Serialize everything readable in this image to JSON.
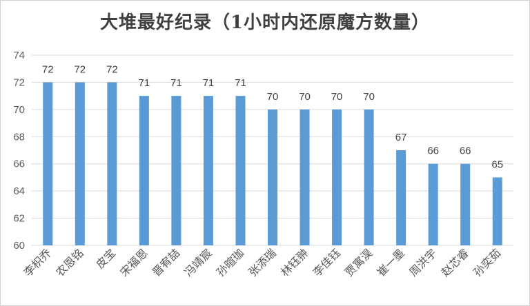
{
  "chart_data": {
    "type": "bar",
    "title": "大堆最好纪录（1小时内还原魔方数量）",
    "categories": [
      "李枳乔",
      "农恩铭",
      "皮宝",
      "宋福恩",
      "晋宥喆",
      "冯靖宸",
      "孙暄珈",
      "张添瑞",
      "林钰翀",
      "李佳钰",
      "贾寓淏",
      "崔一墨",
      "周洪宇",
      "赵芯睿",
      "孙奕茹"
    ],
    "values": [
      72,
      72,
      72,
      71,
      71,
      71,
      71,
      70,
      70,
      70,
      70,
      67,
      66,
      66,
      65
    ],
    "ylim": [
      60,
      74
    ],
    "yticks": [
      60,
      62,
      64,
      66,
      68,
      70,
      72,
      74
    ],
    "grid": true,
    "legend": "none",
    "bar_color": "#5b9bd5"
  }
}
